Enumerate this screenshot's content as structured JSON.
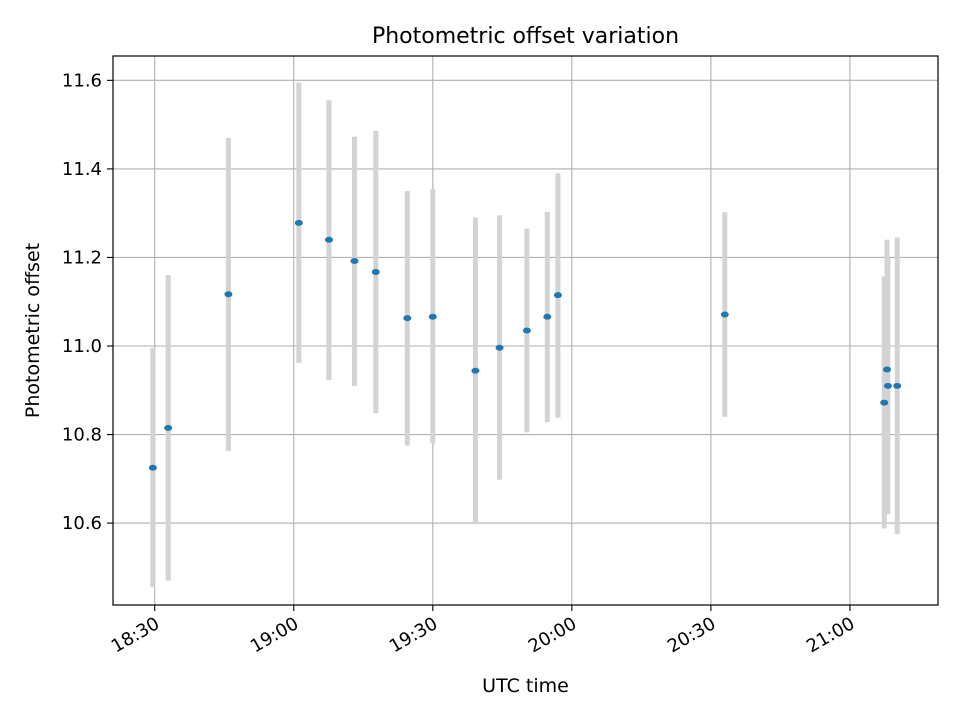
{
  "chart_data": {
    "type": "scatter",
    "title": "Photometric offset variation",
    "xlabel": "UTC time",
    "ylabel": "Photometric offset",
    "xlim": [
      "18:21",
      "21:19"
    ],
    "ylim": [
      10.415,
      11.655
    ],
    "grid": true,
    "x_ticks": [
      "18:30",
      "19:00",
      "19:30",
      "20:00",
      "20:30",
      "21:00"
    ],
    "y_ticks": [
      "10.6",
      "10.8",
      "11.0",
      "11.2",
      "11.4",
      "11.6"
    ],
    "colors": {
      "marker": "#1f77b4",
      "errorbar": "#d3d3d3",
      "grid": "#b0b0b0"
    },
    "points": [
      {
        "x": "18:29.6",
        "y": 10.725,
        "ymin": 10.455,
        "ymax": 10.995
      },
      {
        "x": "18:32.9",
        "y": 10.815,
        "ymin": 10.47,
        "ymax": 11.16
      },
      {
        "x": "18:45.9",
        "y": 11.117,
        "ymin": 10.763,
        "ymax": 11.47
      },
      {
        "x": "19:01.1",
        "y": 11.278,
        "ymin": 10.962,
        "ymax": 11.595
      },
      {
        "x": "19:07.6",
        "y": 11.24,
        "ymin": 10.923,
        "ymax": 11.555
      },
      {
        "x": "19:13.1",
        "y": 11.192,
        "ymin": 10.91,
        "ymax": 11.473
      },
      {
        "x": "19:17.7",
        "y": 11.167,
        "ymin": 10.848,
        "ymax": 11.486
      },
      {
        "x": "19:24.5",
        "y": 11.063,
        "ymin": 10.775,
        "ymax": 11.35
      },
      {
        "x": "19:30.0",
        "y": 11.066,
        "ymin": 10.78,
        "ymax": 11.355
      },
      {
        "x": "19:39.2",
        "y": 10.944,
        "ymin": 10.6,
        "ymax": 11.29
      },
      {
        "x": "19:44.4",
        "y": 10.996,
        "ymin": 10.698,
        "ymax": 11.295
      },
      {
        "x": "19:50.3",
        "y": 11.035,
        "ymin": 10.805,
        "ymax": 11.265
      },
      {
        "x": "19:54.7",
        "y": 11.066,
        "ymin": 10.828,
        "ymax": 11.303
      },
      {
        "x": "19:57.0",
        "y": 11.115,
        "ymin": 10.838,
        "ymax": 11.39
      },
      {
        "x": "20:33.0",
        "y": 11.071,
        "ymin": 10.84,
        "ymax": 11.302
      },
      {
        "x": "21:07.4",
        "y": 10.872,
        "ymin": 10.588,
        "ymax": 11.157
      },
      {
        "x": "21:08.0",
        "y": 10.947,
        "ymin": 10.65,
        "ymax": 11.24
      },
      {
        "x": "21:08.2",
        "y": 10.91,
        "ymin": 10.62,
        "ymax": 11.2
      },
      {
        "x": "21:10.2",
        "y": 10.91,
        "ymin": 10.575,
        "ymax": 11.245
      }
    ]
  }
}
